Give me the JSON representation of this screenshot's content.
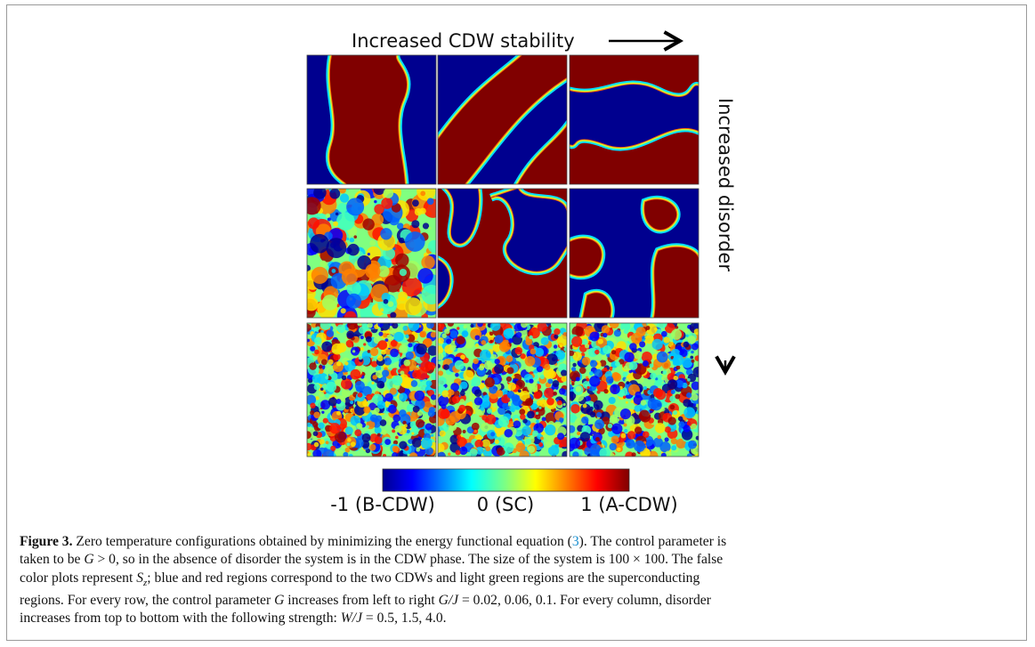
{
  "figure": {
    "top_label": "Increased CDW stability",
    "side_label": "Increased disorder",
    "colorbar_labels": [
      "-1 (B-CDW)",
      "0 (SC)",
      "1 (A-CDW)"
    ]
  },
  "caption": {
    "label": "Figure 3.",
    "lines": [
      [
        " Zero temperature configurations obtained by minimizing the energy functional equation (",
        "3",
        "). The control parameter is"
      ],
      [
        "taken to be ",
        "G",
        " > 0, so in the absence of disorder the system is in the CDW phase. The size of the system is 100 × 100. The false"
      ],
      [
        "color plots represent ",
        "S",
        "z",
        "; blue and red regions correspond to the two CDWs and light green regions are the superconducting"
      ],
      [
        "regions. For every row, the control parameter ",
        "G",
        " increases from left to right ",
        "G/J",
        " = 0.02, 0.06, 0.1. For every column, disorder"
      ],
      [
        "increases from top to bottom with the following strength: ",
        "W/J",
        " = 0.5, 1.5, 4.0."
      ]
    ]
  }
}
